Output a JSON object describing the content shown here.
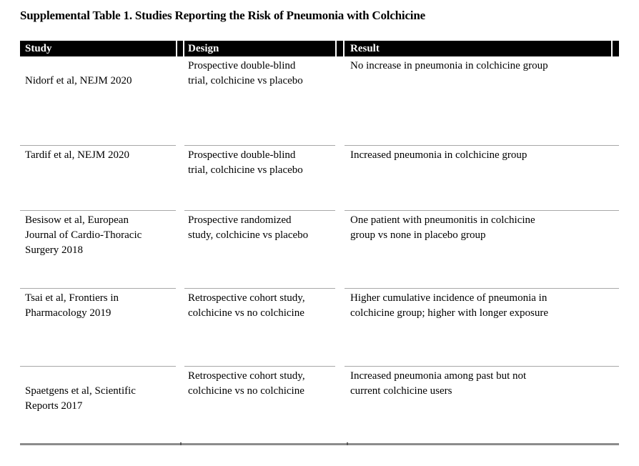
{
  "title": "Supplemental Table 1. Studies Reporting the Risk of Pneumonia with Colchicine",
  "table": {
    "columns": [
      "Study",
      "Design",
      "Result"
    ],
    "rows": [
      {
        "study": "Nidorf et al, NEJM 2020",
        "design": "Prospective double-blind\ntrial, colchicine vs placebo",
        "result": "No increase in pneumonia in colchicine group"
      },
      {
        "study": "Tardif et al, NEJM 2020",
        "design": "Prospective double-blind\ntrial, colchicine vs placebo",
        "result": "Increased pneumonia in colchicine group"
      },
      {
        "study": "Besisow et al, European\nJournal of Cardio-Thoracic\nSurgery 2018",
        "design": "Prospective randomized\nstudy, colchicine vs placebo",
        "result": "One patient with pneumonitis in colchicine\ngroup vs none in placebo group"
      },
      {
        "study": "Tsai et al, Frontiers in\nPharmacology 2019",
        "design": "Retrospective cohort study,\ncolchicine vs no colchicine",
        "result": "Higher cumulative incidence of pneumonia in\ncolchicine group; higher with longer exposure"
      },
      {
        "study": "Spaetgens et al, Scientific\nReports 2017",
        "design": "Retrospective cohort study,\ncolchicine vs no colchicine",
        "result": "Increased pneumonia among past but not\ncurrent colchicine users"
      }
    ],
    "colors": {
      "header_bg": "#000000",
      "header_text": "#ffffff",
      "row_divider": "#a8a8a8",
      "bottom_bar": "#8c8c8c"
    }
  }
}
